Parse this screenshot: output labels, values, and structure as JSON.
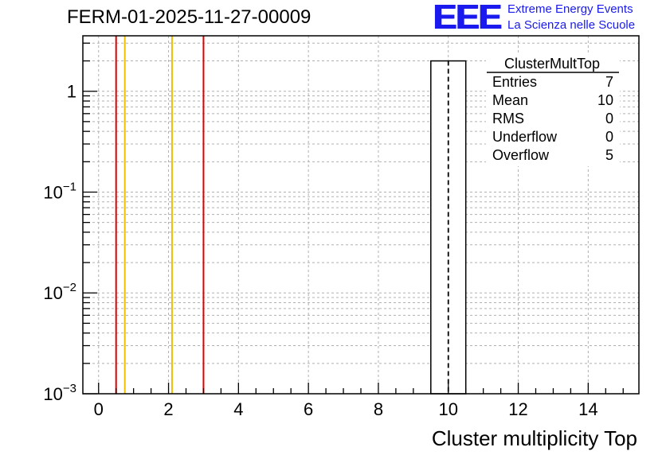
{
  "header": {
    "title": "FERM-01-2025-11-27-00009",
    "logo_mark": "EEE",
    "logo_line1": "Extreme Energy Events",
    "logo_line2": "La Scienza nelle Scuole",
    "logo_color": "#1a1aee"
  },
  "stats_box": {
    "name": "ClusterMultTop",
    "rows": [
      {
        "label": "Entries",
        "value": "7"
      },
      {
        "label": "Mean",
        "value": "10"
      },
      {
        "label": "RMS",
        "value": "0"
      },
      {
        "label": "Underflow",
        "value": "0"
      },
      {
        "label": "Overflow",
        "value": "5"
      }
    ]
  },
  "chart_data": {
    "type": "bar",
    "xlabel": "Cluster multiplicity Top",
    "ylabel": "",
    "xlim": [
      -0.45,
      15.45
    ],
    "ylim_log10": [
      -3,
      0.55
    ],
    "yscale": "log",
    "grid": true,
    "x_ticks": [
      0,
      2,
      4,
      6,
      8,
      10,
      12,
      14
    ],
    "y_ticks": [
      {
        "exp": -3,
        "label": "10",
        "sup": "−3"
      },
      {
        "exp": -2,
        "label": "10",
        "sup": "−2"
      },
      {
        "exp": -1,
        "label": "10",
        "sup": "−1"
      },
      {
        "exp": 0,
        "label": "1",
        "sup": ""
      }
    ],
    "bars": [
      {
        "x0": 9.5,
        "x1": 10.5,
        "value": 2
      }
    ],
    "mean_line": {
      "x": 10,
      "style": "dashed",
      "color": "#000000"
    },
    "reference_lines": [
      {
        "x": 0.5,
        "color": "#e00000"
      },
      {
        "x": 0.75,
        "color": "#f0c000"
      },
      {
        "x": 2.1,
        "color": "#f0c000"
      },
      {
        "x": 3.0,
        "color": "#e00000"
      }
    ]
  }
}
